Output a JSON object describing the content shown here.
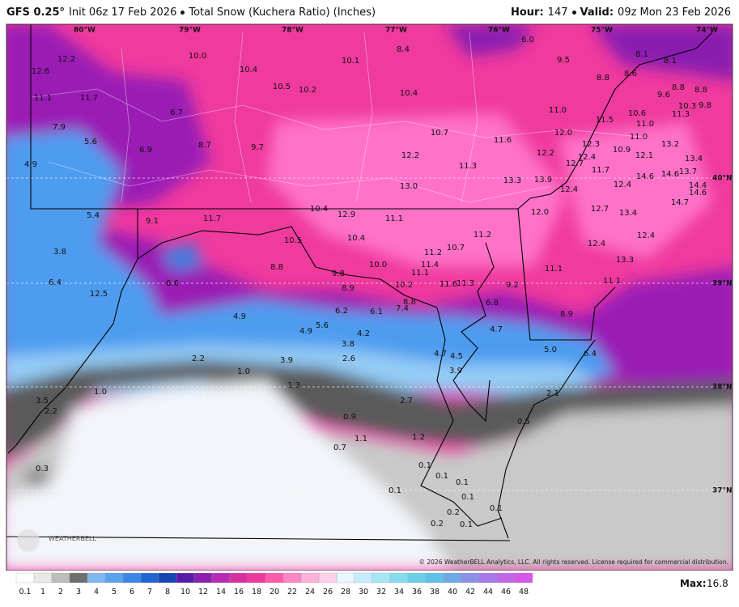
{
  "header": {
    "model": "GFS 0.25°",
    "init": "Init 06z 17 Feb 2026",
    "product": "Total Snow (Kuchera Ratio) (Inches)",
    "hour_label": "Hour:",
    "hour": "147",
    "valid_label": "Valid:",
    "valid": "09z Mon 23 Feb 2026"
  },
  "map": {
    "longitudes": [
      "80°W",
      "79°W",
      "78°W",
      "77°W",
      "76°W",
      "75°W",
      "74°W"
    ],
    "latitudes": [
      "40°N",
      "39°N",
      "38°N",
      "37°N"
    ],
    "labels": [
      "12.2",
      "12.6",
      "11.1",
      "11.7",
      "7.9",
      "5.6",
      "6.9",
      "4.9",
      "10.0",
      "10.4",
      "10.5",
      "10.2",
      "6.7",
      "8.7",
      "9.7",
      "10.1",
      "8.4",
      "10.4",
      "6.0",
      "9.5",
      "8.1",
      "8.1",
      "8.8",
      "8.6",
      "9.6",
      "8.8",
      "8.8",
      "10.3",
      "9.8",
      "11.3",
      "10.6",
      "11.0",
      "11.5",
      "11.0",
      "10.7",
      "11.6",
      "12.0",
      "12.3",
      "12.4",
      "11.0",
      "10.9",
      "12.1",
      "13.2",
      "13.4",
      "12.2",
      "12.7",
      "11.7",
      "14.6",
      "14.6",
      "13.7",
      "14.4",
      "14.6",
      "14.7",
      "12.2",
      "11.3",
      "13.3",
      "13.9",
      "13.0",
      "12.4",
      "12.4",
      "12.0",
      "12.7",
      "13.4",
      "12.4",
      "12.4",
      "13.3",
      "11.1",
      "11.1",
      "8.9",
      "9.2",
      "6.8",
      "4.7",
      "5.0",
      "6.4",
      "5.4",
      "9.1",
      "11.7",
      "10.4",
      "12.9",
      "11.1",
      "10.5",
      "10.4",
      "11.2",
      "10.7",
      "11.2",
      "11.4",
      "10.0",
      "11.1",
      "11.6",
      "11.3",
      "10.2",
      "8.8",
      "9.8",
      "8.9",
      "3.8",
      "6.4",
      "12.5",
      "6.6",
      "6.2",
      "6.1",
      "7.4",
      "8.8",
      "4.9",
      "4.9",
      "5.6",
      "4.2",
      "3.8",
      "2.6",
      "4.7",
      "4.5",
      "3.9",
      "2.2",
      "1.0",
      "3.9",
      "1.3",
      "1.0",
      "3.5",
      "2.2",
      "2.7",
      "2.1",
      "0.9",
      "0.5",
      "1.1",
      "1.2",
      "0.7",
      "0.3",
      "0.1",
      "0.1",
      "0.1",
      "0.1",
      "0.1",
      "0.1",
      "0.2",
      "0.2",
      "0.1"
    ],
    "logo": "WEATHERBELL",
    "copyright": "© 2026 WeatherBELL Analytics, LLC. All rights reserved. License required for commercial distribution."
  },
  "colorbar": {
    "ticks": [
      "0.1",
      "1",
      "2",
      "3",
      "4",
      "5",
      "6",
      "7",
      "8",
      "10",
      "12",
      "14",
      "16",
      "18",
      "20",
      "22",
      "24",
      "26",
      "28",
      "30",
      "32",
      "34",
      "36",
      "38",
      "40",
      "42",
      "44",
      "46",
      "48"
    ]
  },
  "footer": {
    "max_label": "Max:",
    "max": "16.8"
  }
}
